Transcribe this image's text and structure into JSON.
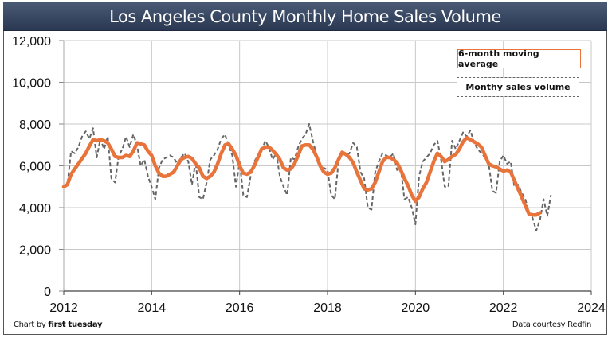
{
  "chart_data": {
    "type": "line",
    "title": "Los Angeles County Monthly Home Sales Volume",
    "xlabel": "",
    "ylabel": "",
    "ylim": [
      0,
      12000
    ],
    "xlim": [
      2012,
      2024
    ],
    "yticks": [
      "0",
      "2,000",
      "4,000",
      "6,000",
      "8,000",
      "10,000",
      "12,000"
    ],
    "ytick_values": [
      0,
      2000,
      4000,
      6000,
      8000,
      10000,
      12000
    ],
    "xticks": [
      "2012",
      "2014",
      "2016",
      "2018",
      "2020",
      "2022",
      "2024"
    ],
    "xtick_values": [
      2012,
      2014,
      2016,
      2018,
      2020,
      2022,
      2024
    ],
    "grid": true,
    "legend_position": "top-right",
    "x_start": 2012.0,
    "x_step_years": 0.0833333,
    "series": [
      {
        "name": "6-month moving average",
        "color": "#e8743b",
        "style": "solid",
        "values": [
          5000,
          5100,
          5600,
          5850,
          6100,
          6350,
          6600,
          6950,
          7250,
          7200,
          7250,
          7200,
          7100,
          6800,
          6450,
          6400,
          6400,
          6500,
          6450,
          6700,
          7100,
          7050,
          7000,
          6700,
          6500,
          6000,
          5650,
          5500,
          5500,
          5600,
          5700,
          6000,
          6300,
          6400,
          6450,
          6350,
          6100,
          5900,
          5500,
          5400,
          5500,
          5700,
          6100,
          6600,
          7000,
          7050,
          6800,
          6500,
          6000,
          5650,
          5600,
          5700,
          6000,
          6400,
          6800,
          6900,
          6900,
          6750,
          6550,
          6300,
          5900,
          5800,
          5850,
          6100,
          6500,
          6950,
          7000,
          7000,
          6800,
          6450,
          6000,
          5700,
          5600,
          5650,
          5900,
          6300,
          6650,
          6550,
          6400,
          6150,
          5700,
          5300,
          4900,
          4850,
          4900,
          5200,
          5700,
          6200,
          6400,
          6400,
          6300,
          6150,
          5800,
          5400,
          5050,
          4600,
          4300,
          4500,
          4900,
          5200,
          5700,
          6200,
          6600,
          6450,
          6200,
          6300,
          6450,
          6550,
          6800,
          7150,
          7350,
          7250,
          7150,
          7050,
          6900,
          6500,
          6100,
          6000,
          5950,
          5850,
          5750,
          5800,
          5700,
          5300,
          4900,
          4500,
          4100,
          3700,
          3650,
          3650,
          3750
        ]
      },
      {
        "name": "Monthy sales volume",
        "color": "#666666",
        "style": "dashed",
        "values": [
          5000,
          5100,
          6700,
          6600,
          6900,
          7400,
          7650,
          7300,
          7800,
          6400,
          7300,
          6800,
          7400,
          5400,
          5200,
          6500,
          6800,
          7400,
          6900,
          7500,
          7000,
          6000,
          6300,
          5500,
          5000,
          4400,
          5900,
          6300,
          6400,
          6500,
          6400,
          6100,
          6400,
          6600,
          6200,
          5100,
          6200,
          4500,
          4400,
          5200,
          6300,
          6500,
          6800,
          7300,
          7500,
          7000,
          6500,
          5000,
          6200,
          4600,
          4500,
          5500,
          6200,
          6500,
          6700,
          7200,
          6900,
          6300,
          6600,
          5500,
          5000,
          4600,
          6400,
          6300,
          6900,
          7300,
          7500,
          8000,
          7200,
          6500,
          5900,
          5900,
          5800,
          4600,
          4400,
          6200,
          6600,
          6500,
          6600,
          7100,
          6900,
          5700,
          5400,
          4000,
          3900,
          5700,
          6200,
          6600,
          6500,
          6400,
          6600,
          5800,
          5900,
          4400,
          4500,
          4000,
          3200,
          5500,
          6200,
          6400,
          6600,
          7000,
          7200,
          6300,
          5000,
          5000,
          7200,
          6800,
          7200,
          7600,
          7400,
          7700,
          7100,
          6800,
          6600,
          6400,
          6100,
          4800,
          4700,
          6200,
          6500,
          6100,
          6200,
          5000,
          5100,
          4700,
          4400,
          3800,
          3500,
          2900,
          3400,
          4400,
          3600,
          4600
        ]
      }
    ]
  },
  "footer": {
    "credit_prefix": "Chart by ",
    "credit_brand": "first tuesday",
    "source": "Data courtesy Redfin"
  }
}
